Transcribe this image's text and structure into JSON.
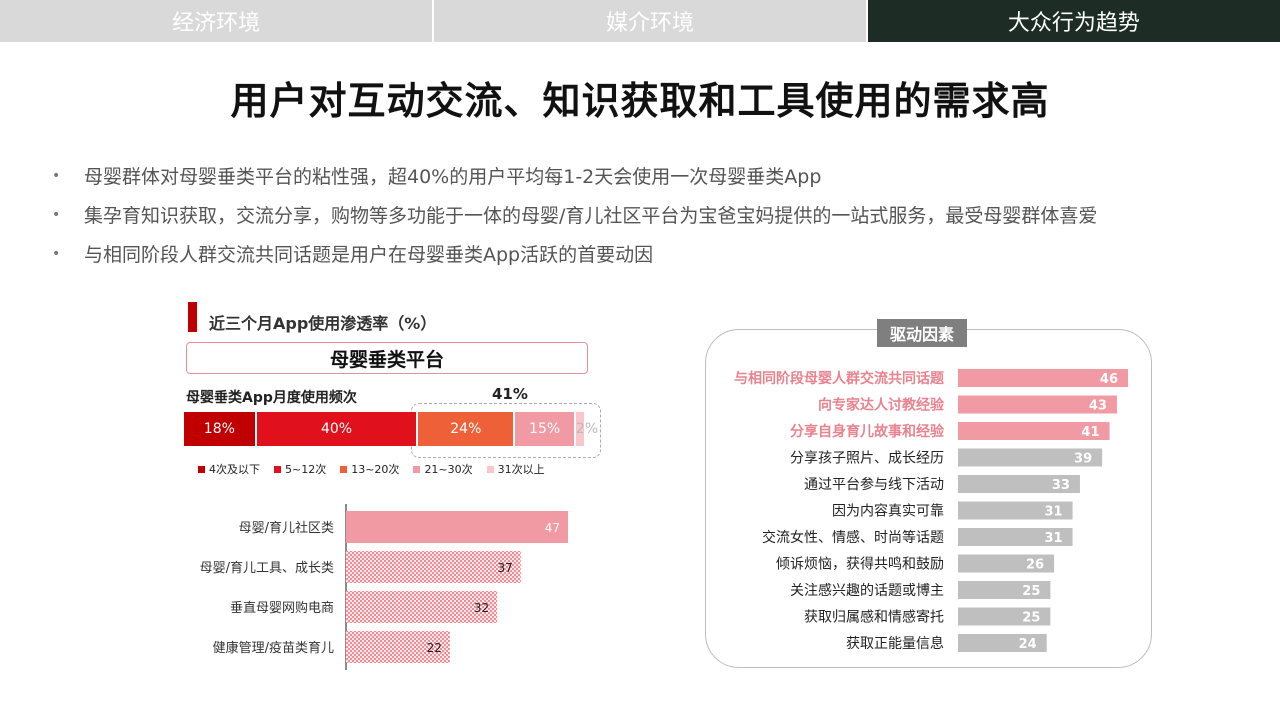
{
  "tabs": [
    {
      "label": "经济环境",
      "active": false
    },
    {
      "label": "媒介环境",
      "active": false
    },
    {
      "label": "大众行为趋势",
      "active": true
    }
  ],
  "title": "用户对互动交流、知识获取和工具使用的需求高",
  "bullets": [
    "母婴群体对母婴垂类平台的粘性强，超40%的用户平均每1-2天会使用一次母婴垂类App",
    "集孕育知识获取，交流分享，购物等多功能于一体的母婴/育儿社区平台为宝爸宝妈提供的一站式服务，最受母婴群体喜爱",
    "与相同阶段人群交流共同话题是用户在母婴垂类App活跃的首要动因"
  ],
  "left_panel": {
    "header": "近三个月App使用渗透率（%）",
    "platform_label": "母婴垂类平台",
    "freq_title": "母婴垂类App月度使用频次",
    "sum_label": "41%"
  },
  "right_panel": {
    "title": "驱动因素"
  },
  "colors": {
    "dark_red": "#c00000",
    "red": "#e0101c",
    "orange": "#ee6138",
    "pink": "#f29aa3",
    "light_pink": "#f8c6cb",
    "gray_bar": "#bfbfbf",
    "highlight_text": "#e8838f"
  },
  "chart_data": [
    {
      "type": "bar",
      "orientation": "horizontal-stacked",
      "categories": [
        "4次及以下",
        "5~12次",
        "13~20次",
        "21~30次",
        "31次以上"
      ],
      "values": [
        18,
        40,
        24,
        15,
        2
      ],
      "labels": [
        "18%",
        "40%",
        "24%",
        "15%",
        "2%"
      ],
      "legend": [
        "4次及以下",
        "5~12次",
        "13~20次",
        "21~30次",
        "31次以上"
      ],
      "colors": [
        "#c00000",
        "#e0101c",
        "#ee6138",
        "#f29aa3",
        "#f8c6cb"
      ]
    },
    {
      "type": "bar",
      "orientation": "horizontal",
      "categories": [
        "母婴/育儿社区类",
        "母婴/育儿工具、成长类",
        "垂直母婴网购电商",
        "健康管理/疫苗类育儿"
      ],
      "values": [
        47,
        37,
        32,
        22
      ],
      "xlim": [
        0,
        50
      ]
    },
    {
      "type": "bar",
      "orientation": "horizontal",
      "categories": [
        "与相同阶段母婴人群交流共同话题",
        "向专家达人讨教经验",
        "分享自身育儿故事和经验",
        "分享孩子照片、成长经历",
        "通过平台参与线下活动",
        "因为内容真实可靠",
        "交流女性、情感、时尚等话题",
        "倾诉烦恼，获得共鸣和鼓励",
        "关注感兴趣的话题或博主",
        "获取归属感和情感寄托",
        "获取正能量信息"
      ],
      "values": [
        46,
        43,
        41,
        39,
        33,
        31,
        31,
        26,
        25,
        25,
        24
      ],
      "highlighted": [
        true,
        true,
        true,
        false,
        false,
        false,
        false,
        false,
        false,
        false,
        false
      ],
      "xlim": [
        0,
        50
      ]
    }
  ]
}
